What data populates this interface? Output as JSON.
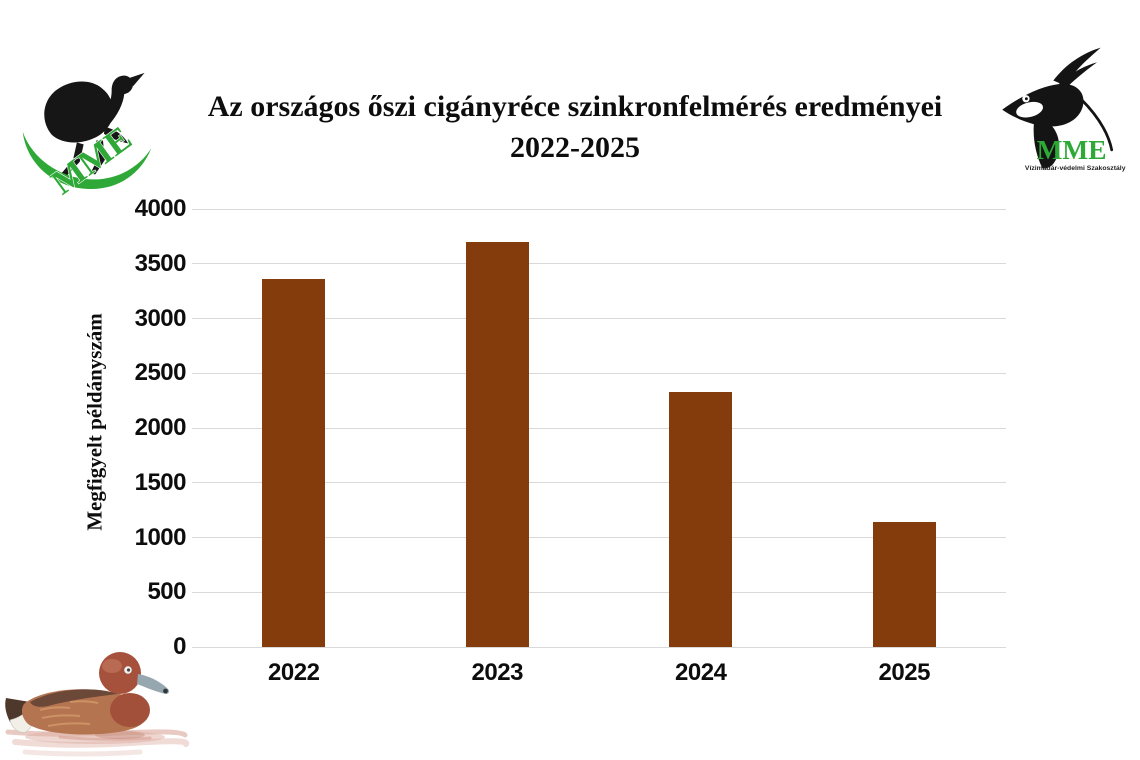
{
  "slide": {
    "title_line1": "Az országos őszi cigányréce szinkronfelmérés eredményei",
    "title_line2": "2022-2025",
    "logo_left": {
      "mme": "MME"
    },
    "logo_right": {
      "mme": "MME",
      "subtitle": "Vízimadár-védelmi Szakosztály"
    },
    "colors": {
      "bar": "#843C0C",
      "gridline": "#D9D9D9",
      "logo_green": "#2EA836",
      "text": "#0D0D0D"
    }
  },
  "chart_data": {
    "type": "bar",
    "title": "Az országos őszi cigányréce szinkronfelmérés eredményei 2022-2025",
    "categories": [
      "2022",
      "2023",
      "2024",
      "2025"
    ],
    "values": [
      3360,
      3700,
      2330,
      1140
    ],
    "xlabel": "",
    "ylabel": "Megfigyelt példányszám",
    "ylim": [
      0,
      4000
    ],
    "yticks": [
      0,
      500,
      1000,
      1500,
      2000,
      2500,
      3000,
      3500,
      4000
    ],
    "grid": true,
    "legend": false,
    "bar_color": "#843C0C"
  }
}
